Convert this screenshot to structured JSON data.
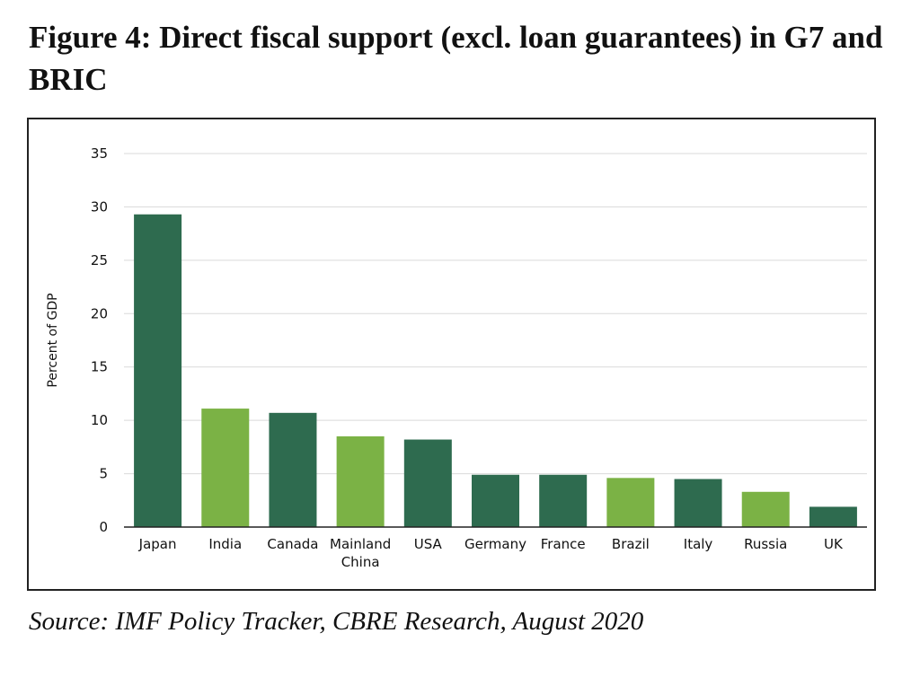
{
  "title": "Figure 4: Direct fiscal support (excl. loan guarantees) in G7 and BRIC",
  "source": "Source: IMF Policy Tracker, CBRE Research, August 2020",
  "colors": {
    "g7": "#2e6b4f",
    "bric": "#7bb245",
    "grid": "#d9d9d9",
    "axis": "#222222"
  },
  "chart_data": {
    "type": "bar",
    "title": "",
    "xlabel": "",
    "ylabel": "Percent of GDP",
    "ylim": [
      0,
      35
    ],
    "yticks": [
      0,
      5,
      10,
      15,
      20,
      25,
      30,
      35
    ],
    "grid": true,
    "categories": [
      "Japan",
      "India",
      "Canada",
      "Mainland China",
      "USA",
      "Germany",
      "France",
      "Brazil",
      "Italy",
      "Russia",
      "UK"
    ],
    "category_lines": [
      [
        "Japan"
      ],
      [
        "India"
      ],
      [
        "Canada"
      ],
      [
        "Mainland",
        "China"
      ],
      [
        "USA"
      ],
      [
        "Germany"
      ],
      [
        "France"
      ],
      [
        "Brazil"
      ],
      [
        "Italy"
      ],
      [
        "Russia"
      ],
      [
        "UK"
      ]
    ],
    "values": [
      29.3,
      11.1,
      10.7,
      8.5,
      8.2,
      4.9,
      4.9,
      4.6,
      4.5,
      3.3,
      1.9
    ],
    "bar_groups": [
      "g7",
      "bric",
      "g7",
      "bric",
      "g7",
      "g7",
      "g7",
      "bric",
      "g7",
      "bric",
      "g7"
    ]
  }
}
